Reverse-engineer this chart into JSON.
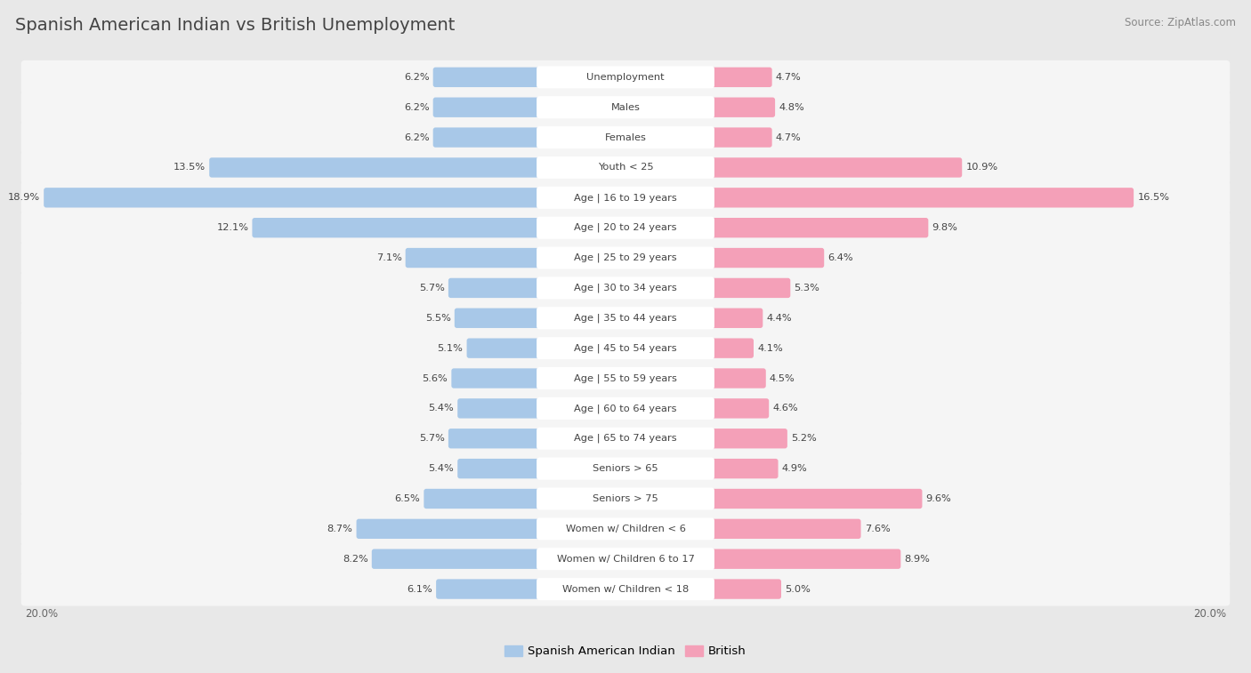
{
  "title": "Spanish American Indian vs British Unemployment",
  "source": "Source: ZipAtlas.com",
  "categories": [
    "Unemployment",
    "Males",
    "Females",
    "Youth < 25",
    "Age | 16 to 19 years",
    "Age | 20 to 24 years",
    "Age | 25 to 29 years",
    "Age | 30 to 34 years",
    "Age | 35 to 44 years",
    "Age | 45 to 54 years",
    "Age | 55 to 59 years",
    "Age | 60 to 64 years",
    "Age | 65 to 74 years",
    "Seniors > 65",
    "Seniors > 75",
    "Women w/ Children < 6",
    "Women w/ Children 6 to 17",
    "Women w/ Children < 18"
  ],
  "left_values": [
    6.2,
    6.2,
    6.2,
    13.5,
    18.9,
    12.1,
    7.1,
    5.7,
    5.5,
    5.1,
    5.6,
    5.4,
    5.7,
    5.4,
    6.5,
    8.7,
    8.2,
    6.1
  ],
  "right_values": [
    4.7,
    4.8,
    4.7,
    10.9,
    16.5,
    9.8,
    6.4,
    5.3,
    4.4,
    4.1,
    4.5,
    4.6,
    5.2,
    4.9,
    9.6,
    7.6,
    8.9,
    5.0
  ],
  "left_color": "#a8c8e8",
  "right_color": "#f4a0b8",
  "left_label": "Spanish American Indian",
  "right_label": "British",
  "background_color": "#e8e8e8",
  "row_background_light": "#f5f5f5",
  "row_background_dark": "#ebebeb",
  "max_val": 20.0,
  "axis_label_left": "20.0%",
  "axis_label_right": "20.0%"
}
